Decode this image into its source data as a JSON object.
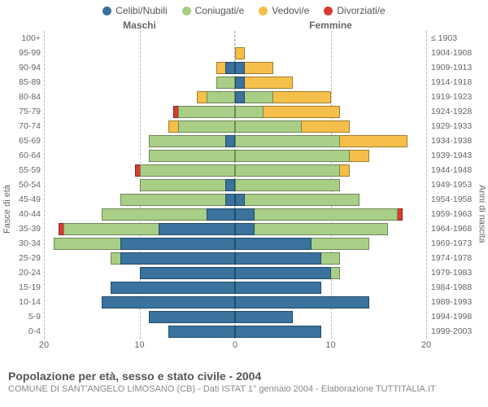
{
  "legend": [
    {
      "label": "Celibi/Nubili",
      "color": "#39739e"
    },
    {
      "label": "Coniugati/e",
      "color": "#a9cf86"
    },
    {
      "label": "Vedovi/e",
      "color": "#f6bf49"
    },
    {
      "label": "Divorziati/e",
      "color": "#d83b30"
    }
  ],
  "headers": {
    "male": "Maschi",
    "female": "Femmine"
  },
  "axis_titles": {
    "left": "Fasce di età",
    "right": "Anni di nascita"
  },
  "title": "Popolazione per età, sesso e stato civile - 2004",
  "subtitle": "COMUNE DI SANT'ANGELO LIMOSANO (CB) - Dati ISTAT 1° gennaio 2004 - Elaborazione TUTTITALIA.IT",
  "xmax": 20,
  "xticks": [
    20,
    10,
    0,
    10,
    20
  ],
  "rows": [
    {
      "age": "100+",
      "year": "≤ 1903",
      "m": [
        0,
        0,
        0,
        0
      ],
      "f": [
        0,
        0,
        0,
        0
      ]
    },
    {
      "age": "95-99",
      "year": "1904-1908",
      "m": [
        0,
        0,
        0,
        0
      ],
      "f": [
        0,
        0,
        1,
        0
      ]
    },
    {
      "age": "90-94",
      "year": "1909-1913",
      "m": [
        1,
        0,
        1,
        0
      ],
      "f": [
        1,
        0,
        3,
        0
      ]
    },
    {
      "age": "85-89",
      "year": "1914-1918",
      "m": [
        0,
        2,
        0,
        0
      ],
      "f": [
        1,
        0,
        5,
        0
      ]
    },
    {
      "age": "80-84",
      "year": "1919-1923",
      "m": [
        0,
        3,
        1,
        0
      ],
      "f": [
        1,
        3,
        6,
        0
      ]
    },
    {
      "age": "75-79",
      "year": "1924-1928",
      "m": [
        0,
        6,
        0,
        0.5
      ],
      "f": [
        0,
        3,
        8,
        0
      ]
    },
    {
      "age": "70-74",
      "year": "1929-1933",
      "m": [
        0,
        6,
        1,
        0
      ],
      "f": [
        0,
        7,
        5,
        0
      ]
    },
    {
      "age": "65-69",
      "year": "1934-1938",
      "m": [
        1,
        8,
        0,
        0
      ],
      "f": [
        0,
        11,
        7,
        0
      ]
    },
    {
      "age": "60-64",
      "year": "1939-1943",
      "m": [
        0,
        9,
        0,
        0
      ],
      "f": [
        0,
        12,
        2,
        0
      ]
    },
    {
      "age": "55-59",
      "year": "1944-1948",
      "m": [
        0,
        10,
        0,
        0.5
      ],
      "f": [
        0,
        11,
        1,
        0
      ]
    },
    {
      "age": "50-54",
      "year": "1949-1953",
      "m": [
        1,
        9,
        0,
        0
      ],
      "f": [
        0,
        11,
        0,
        0
      ]
    },
    {
      "age": "45-49",
      "year": "1954-1958",
      "m": [
        1,
        11,
        0,
        0
      ],
      "f": [
        1,
        12,
        0,
        0
      ]
    },
    {
      "age": "40-44",
      "year": "1959-1963",
      "m": [
        3,
        11,
        0,
        0
      ],
      "f": [
        2,
        15,
        0,
        0.5
      ]
    },
    {
      "age": "35-39",
      "year": "1964-1968",
      "m": [
        8,
        10,
        0,
        0.5
      ],
      "f": [
        2,
        14,
        0,
        0
      ]
    },
    {
      "age": "30-34",
      "year": "1969-1973",
      "m": [
        12,
        7,
        0,
        0
      ],
      "f": [
        8,
        6,
        0,
        0
      ]
    },
    {
      "age": "25-29",
      "year": "1974-1978",
      "m": [
        12,
        1,
        0,
        0
      ],
      "f": [
        9,
        2,
        0,
        0
      ]
    },
    {
      "age": "20-24",
      "year": "1979-1983",
      "m": [
        10,
        0,
        0,
        0
      ],
      "f": [
        10,
        1,
        0,
        0
      ]
    },
    {
      "age": "15-19",
      "year": "1984-1988",
      "m": [
        13,
        0,
        0,
        0
      ],
      "f": [
        9,
        0,
        0,
        0
      ]
    },
    {
      "age": "10-14",
      "year": "1989-1993",
      "m": [
        14,
        0,
        0,
        0
      ],
      "f": [
        14,
        0,
        0,
        0
      ]
    },
    {
      "age": "5-9",
      "year": "1994-1998",
      "m": [
        9,
        0,
        0,
        0
      ],
      "f": [
        6,
        0,
        0,
        0
      ]
    },
    {
      "age": "0-4",
      "year": "1999-2003",
      "m": [
        7,
        0,
        0,
        0
      ],
      "f": [
        9,
        0,
        0,
        0
      ]
    }
  ],
  "colors": [
    "#39739e",
    "#a9cf86",
    "#f6bf49",
    "#d83b30"
  ]
}
